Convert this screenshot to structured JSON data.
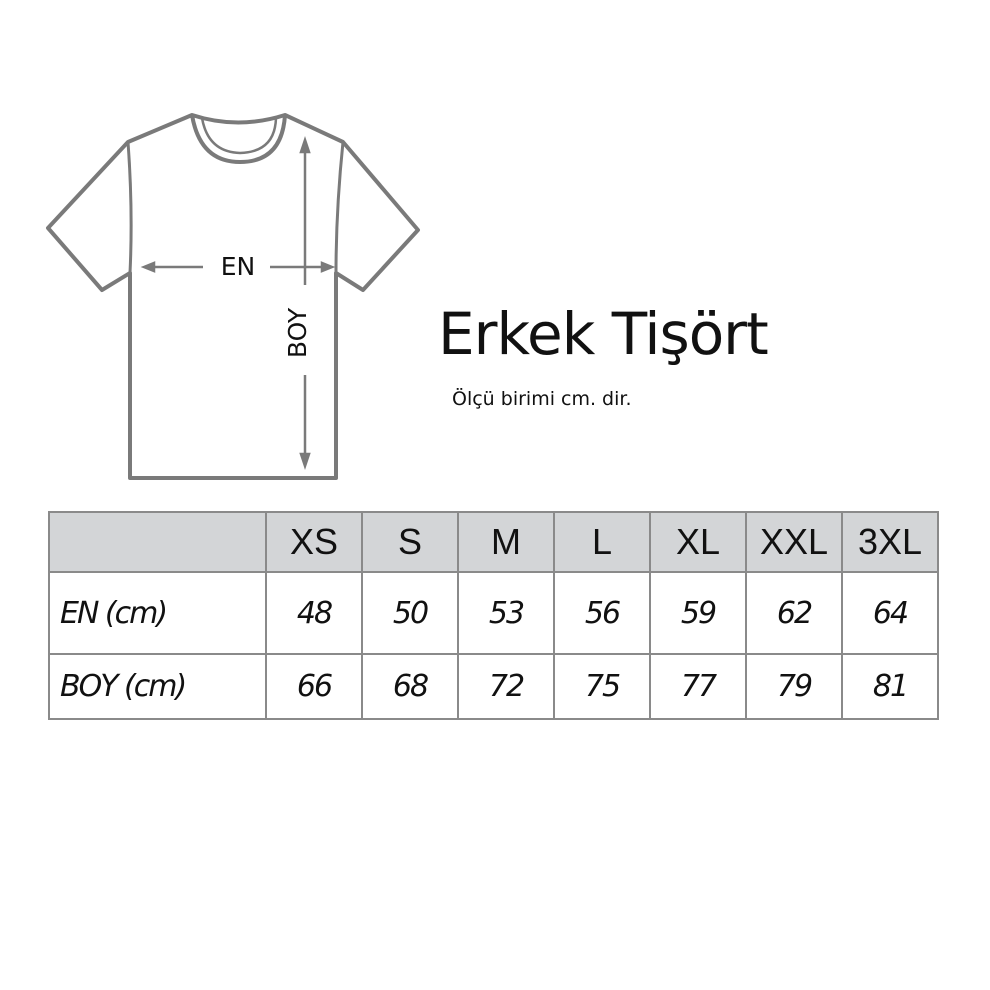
{
  "diagram": {
    "width_label": "EN",
    "length_label": "BOY",
    "line_color": "#7a7a7a"
  },
  "title": "Erkek Tişört",
  "subtitle": "Ölçü birimi cm. dir.",
  "table": {
    "header_bg": "#d3d5d7",
    "sizes": [
      "XS",
      "S",
      "M",
      "L",
      "XL",
      "XXL",
      "3XL"
    ],
    "rows": [
      {
        "label": "EN (cm)",
        "values": [
          "48",
          "50",
          "53",
          "56",
          "59",
          "62",
          "64"
        ]
      },
      {
        "label": "BOY (cm)",
        "values": [
          "66",
          "68",
          "72",
          "75",
          "77",
          "79",
          "81"
        ]
      }
    ]
  }
}
